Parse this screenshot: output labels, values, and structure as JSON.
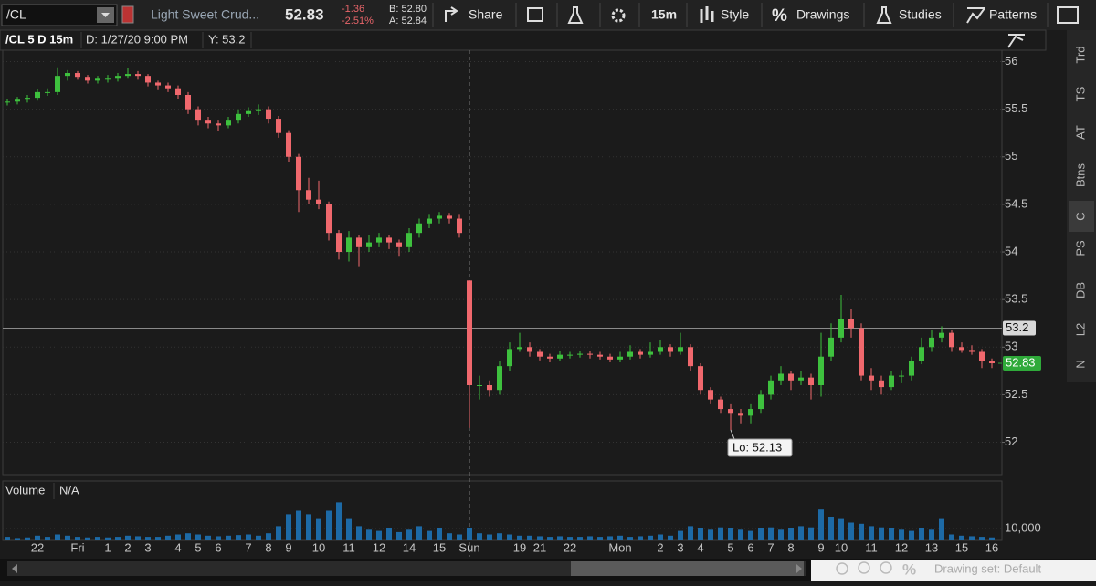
{
  "toolbar": {
    "symbol": "/CL",
    "description": "Light Sweet Crud...",
    "last": "52.83",
    "change": "-1.36",
    "change_pct": "-2.51%",
    "bid": "B: 52.80",
    "ask": "A: 52.84",
    "share": "Share",
    "period": "15m",
    "style": "Style",
    "drawings": "Drawings",
    "studies": "Studies",
    "patterns": "Patterns"
  },
  "chart_header": {
    "symbol": "/CL 5 D 15m",
    "date": "D: 1/27/20 9:00 PM",
    "y": "Y: 53.2"
  },
  "sidebar": [
    "Trd",
    "TS",
    "AT",
    "Btns",
    "C",
    "PS",
    "DB",
    "L2",
    "N"
  ],
  "footer": {
    "drawing_set": "Drawing set: Default"
  },
  "chart_data": {
    "type": "candlestick",
    "categories": [
      null,
      null,
      null,
      "22",
      null,
      null,
      null,
      "Fri",
      null,
      null,
      "1",
      null,
      "2",
      null,
      "3",
      null,
      null,
      "4",
      null,
      "5",
      null,
      "6",
      null,
      null,
      "7",
      null,
      "8",
      null,
      "9",
      null,
      null,
      "10",
      null,
      null,
      "11",
      null,
      null,
      "12",
      null,
      null,
      "14",
      null,
      null,
      "15",
      null,
      null,
      "Sun",
      null,
      null,
      null,
      null,
      "19",
      null,
      "21",
      null,
      null,
      "22",
      null,
      null,
      null,
      null,
      "Mon",
      null,
      null,
      null,
      "2",
      null,
      "3",
      null,
      "4",
      null,
      null,
      "5",
      null,
      "6",
      null,
      "7",
      null,
      "8",
      null,
      null,
      "9",
      null,
      "10",
      null,
      null,
      "11",
      null,
      null,
      "12",
      null,
      null,
      "13",
      null,
      null,
      "15",
      null,
      null,
      "16"
    ],
    "candles": [
      [
        55.57,
        55.61,
        55.54,
        55.58
      ],
      [
        55.58,
        55.63,
        55.55,
        55.6
      ],
      [
        55.6,
        55.65,
        55.57,
        55.62
      ],
      [
        55.62,
        55.71,
        55.59,
        55.68
      ],
      [
        55.68,
        55.72,
        55.64,
        55.68
      ],
      [
        55.68,
        55.94,
        55.65,
        55.85
      ],
      [
        55.85,
        55.91,
        55.8,
        55.88
      ],
      [
        55.88,
        55.9,
        55.81,
        55.84
      ],
      [
        55.84,
        55.86,
        55.77,
        55.8
      ],
      [
        55.8,
        55.85,
        55.77,
        55.82
      ],
      [
        55.82,
        55.86,
        55.78,
        55.82
      ],
      [
        55.82,
        55.88,
        55.79,
        55.85
      ],
      [
        55.85,
        55.93,
        55.82,
        55.87
      ],
      [
        55.87,
        55.9,
        55.81,
        55.85
      ],
      [
        55.85,
        55.87,
        55.74,
        55.78
      ],
      [
        55.78,
        55.8,
        55.7,
        55.75
      ],
      [
        55.75,
        55.78,
        55.68,
        55.72
      ],
      [
        55.72,
        55.75,
        55.61,
        55.65
      ],
      [
        55.65,
        55.68,
        55.45,
        55.5
      ],
      [
        55.5,
        55.53,
        55.33,
        55.38
      ],
      [
        55.38,
        55.42,
        55.3,
        55.35
      ],
      [
        55.35,
        55.38,
        55.27,
        55.33
      ],
      [
        55.33,
        55.42,
        55.3,
        55.38
      ],
      [
        55.38,
        55.5,
        55.35,
        55.45
      ],
      [
        55.45,
        55.52,
        55.42,
        55.48
      ],
      [
        55.48,
        55.55,
        55.44,
        55.5
      ],
      [
        55.5,
        55.53,
        55.35,
        55.4
      ],
      [
        55.4,
        55.43,
        55.2,
        55.25
      ],
      [
        55.25,
        55.28,
        54.95,
        55.0
      ],
      [
        55.0,
        55.03,
        54.42,
        54.65
      ],
      [
        54.65,
        54.78,
        54.5,
        54.55
      ],
      [
        54.55,
        54.75,
        54.45,
        54.5
      ],
      [
        54.5,
        54.53,
        54.12,
        54.2
      ],
      [
        54.2,
        54.23,
        53.92,
        54.0
      ],
      [
        54.0,
        54.22,
        53.9,
        54.15
      ],
      [
        54.15,
        54.18,
        53.85,
        54.05
      ],
      [
        54.05,
        54.18,
        54.0,
        54.1
      ],
      [
        54.1,
        54.2,
        54.05,
        54.15
      ],
      [
        54.15,
        54.18,
        54.03,
        54.1
      ],
      [
        54.1,
        54.13,
        53.95,
        54.05
      ],
      [
        54.05,
        54.25,
        54.0,
        54.2
      ],
      [
        54.2,
        54.35,
        54.15,
        54.3
      ],
      [
        54.3,
        54.4,
        54.25,
        54.35
      ],
      [
        54.35,
        54.42,
        54.3,
        54.38
      ],
      [
        54.38,
        54.41,
        54.3,
        54.35
      ],
      [
        54.35,
        54.4,
        54.15,
        54.2
      ],
      [
        53.7,
        53.7,
        52.15,
        52.6
      ],
      [
        52.6,
        52.7,
        52.45,
        52.6
      ],
      [
        52.6,
        52.65,
        52.48,
        52.55
      ],
      [
        52.55,
        52.85,
        52.5,
        52.8
      ],
      [
        52.8,
        53.05,
        52.75,
        52.98
      ],
      [
        52.98,
        53.15,
        52.95,
        53.0
      ],
      [
        53.0,
        53.05,
        52.9,
        52.95
      ],
      [
        52.95,
        52.98,
        52.86,
        52.9
      ],
      [
        52.9,
        52.93,
        52.84,
        52.88
      ],
      [
        52.88,
        52.96,
        52.85,
        52.92
      ],
      [
        52.92,
        52.95,
        52.88,
        52.92
      ],
      [
        52.92,
        52.96,
        52.89,
        52.93
      ],
      [
        52.93,
        52.96,
        52.88,
        52.92
      ],
      [
        52.92,
        52.95,
        52.87,
        52.9
      ],
      [
        52.9,
        52.93,
        52.84,
        52.87
      ],
      [
        52.87,
        52.95,
        52.84,
        52.9
      ],
      [
        52.9,
        53.02,
        52.87,
        52.95
      ],
      [
        52.95,
        52.98,
        52.88,
        52.92
      ],
      [
        52.92,
        53.05,
        52.89,
        52.95
      ],
      [
        52.95,
        53.08,
        52.92,
        53.0
      ],
      [
        53.0,
        53.03,
        52.9,
        52.95
      ],
      [
        52.95,
        53.15,
        52.92,
        53.0
      ],
      [
        53.0,
        53.03,
        52.75,
        52.8
      ],
      [
        52.8,
        52.83,
        52.5,
        52.55
      ],
      [
        52.55,
        52.58,
        52.4,
        52.45
      ],
      [
        52.45,
        52.48,
        52.3,
        52.35
      ],
      [
        52.35,
        52.4,
        52.13,
        52.3
      ],
      [
        52.3,
        52.35,
        52.2,
        52.28
      ],
      [
        52.28,
        52.4,
        52.2,
        52.35
      ],
      [
        52.35,
        52.55,
        52.3,
        52.5
      ],
      [
        52.5,
        52.7,
        52.45,
        52.65
      ],
      [
        52.65,
        52.8,
        52.6,
        52.72
      ],
      [
        52.72,
        52.75,
        52.55,
        52.65
      ],
      [
        52.65,
        52.75,
        52.6,
        52.68
      ],
      [
        52.68,
        52.72,
        52.45,
        52.6
      ],
      [
        52.6,
        53.15,
        52.48,
        52.9
      ],
      [
        52.9,
        53.25,
        52.85,
        53.1
      ],
      [
        53.1,
        53.55,
        53.05,
        53.3
      ],
      [
        53.3,
        53.4,
        53.1,
        53.2
      ],
      [
        53.2,
        53.25,
        52.65,
        52.7
      ],
      [
        52.7,
        52.78,
        52.55,
        52.65
      ],
      [
        52.65,
        52.7,
        52.5,
        52.58
      ],
      [
        52.58,
        52.75,
        52.55,
        52.7
      ],
      [
        52.7,
        52.76,
        52.62,
        52.7
      ],
      [
        52.7,
        52.9,
        52.65,
        52.85
      ],
      [
        52.85,
        53.1,
        52.82,
        53.0
      ],
      [
        53.0,
        53.18,
        52.95,
        53.1
      ],
      [
        53.1,
        53.22,
        53.05,
        53.15
      ],
      [
        53.15,
        53.18,
        52.95,
        53.0
      ],
      [
        53.0,
        53.05,
        52.94,
        52.97
      ],
      [
        52.97,
        53.02,
        52.92,
        52.95
      ],
      [
        52.95,
        52.98,
        52.78,
        52.85
      ],
      [
        52.85,
        52.88,
        52.78,
        52.83
      ]
    ],
    "up_color": "#3ec13e",
    "down_color": "#f0686d",
    "ylim": [
      51.66,
      56.12
    ],
    "yticks": [
      52,
      52.5,
      53,
      53.5,
      54,
      54.5,
      55,
      55.5,
      56
    ],
    "grid": true,
    "crosshair": 53.2,
    "last_price": 52.83,
    "annotation": "Lo: 52.13",
    "volume": {
      "title": "Volume",
      "status": "N/A",
      "color": "#1d6aa6",
      "values": [
        3000,
        2000,
        2500,
        4000,
        3000,
        5000,
        4000,
        3000,
        2500,
        3000,
        2500,
        3000,
        4000,
        3500,
        3000,
        3000,
        4000,
        5000,
        6000,
        5000,
        4000,
        3500,
        4000,
        4500,
        5000,
        4000,
        6000,
        12000,
        22000,
        25000,
        22000,
        18000,
        25000,
        32000,
        18000,
        12000,
        9000,
        8000,
        10000,
        7000,
        9000,
        12000,
        8000,
        10000,
        6000,
        5000,
        10000,
        6000,
        5000,
        6000,
        5000,
        4000,
        4000,
        3500,
        3000,
        3500,
        3000,
        3000,
        3500,
        3000,
        3500,
        4000,
        3000,
        3500,
        4000,
        5000,
        4000,
        8000,
        12000,
        10000,
        9000,
        11000,
        10000,
        9000,
        8000,
        10000,
        11000,
        9000,
        10000,
        12000,
        11000,
        26000,
        20000,
        18000,
        15000,
        14000,
        12000,
        11000,
        10000,
        9000,
        8000,
        10000,
        9000,
        18000,
        5000,
        4000,
        3500,
        3000,
        2500
      ],
      "ylim": [
        0,
        50000
      ],
      "yticks": [
        {
          "value": 10000,
          "label": "10,000"
        }
      ]
    }
  }
}
